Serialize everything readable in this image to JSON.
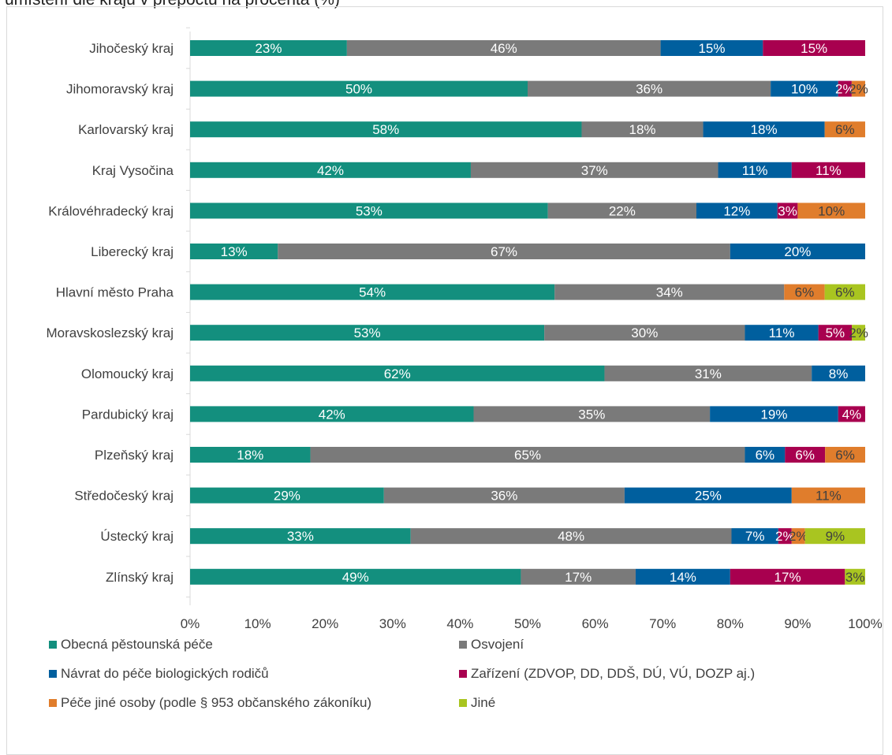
{
  "title": "umístění dle krajů v přepočtu na procenta (%)",
  "chart_data": {
    "type": "bar",
    "orientation": "horizontal",
    "stacked": true,
    "percent_stacked": true,
    "categories": [
      "Jihočeský kraj",
      "Jihomoravský kraj",
      "Karlovarský kraj",
      "Kraj Vysočina",
      "Královéhradecký kraj",
      "Liberecký kraj",
      "Hlavní město Praha",
      "Moravskoslezský kraj",
      "Olomoucký kraj",
      "Pardubický kraj",
      "Plzeňský kraj",
      "Středočeský kraj",
      "Ústecký kraj",
      "Zlínský kraj"
    ],
    "series": [
      {
        "name": "Obecná pěstounská péče",
        "color": "#138f7e",
        "label_color": "#ffffff",
        "values": [
          23,
          50,
          58,
          42,
          53,
          13,
          54,
          53,
          62,
          42,
          18,
          29,
          33,
          49
        ]
      },
      {
        "name": "Osvojení",
        "color": "#7a7a7a",
        "label_color": "#ffffff",
        "values": [
          46,
          36,
          18,
          37,
          22,
          67,
          34,
          30,
          31,
          35,
          65,
          36,
          48,
          17
        ]
      },
      {
        "name": "Návrat do péče biologických rodičů",
        "color": "#005f9e",
        "label_color": "#ffffff",
        "values": [
          15,
          10,
          18,
          11,
          12,
          20,
          0,
          11,
          8,
          19,
          6,
          25,
          7,
          14
        ]
      },
      {
        "name": "Zařízení (ZDVOP, DD, DDŠ, DÚ, VÚ, DOZP aj.)",
        "color": "#a8004f",
        "label_color": "#ffffff",
        "values": [
          15,
          2,
          0,
          11,
          3,
          0,
          0,
          5,
          0,
          4,
          6,
          0,
          2,
          17
        ]
      },
      {
        "name": "Péče jiné osoby (podle § 953 občanského zákoníku)",
        "color": "#e07d2c",
        "label_color": "#404040",
        "values": [
          0,
          2,
          6,
          0,
          10,
          0,
          6,
          0,
          0,
          0,
          6,
          11,
          2,
          0
        ]
      },
      {
        "name": "Jiné",
        "color": "#a9c520",
        "label_color": "#404040",
        "values": [
          0,
          0,
          0,
          0,
          0,
          0,
          6,
          2,
          0,
          0,
          0,
          0,
          9,
          3
        ]
      }
    ],
    "xlim": [
      0,
      100
    ],
    "x_ticks": [
      "0%",
      "10%",
      "20%",
      "30%",
      "40%",
      "50%",
      "60%",
      "70%",
      "80%",
      "90%",
      "100%"
    ],
    "value_suffix": "%",
    "grid": false,
    "legend_position": "bottom"
  }
}
